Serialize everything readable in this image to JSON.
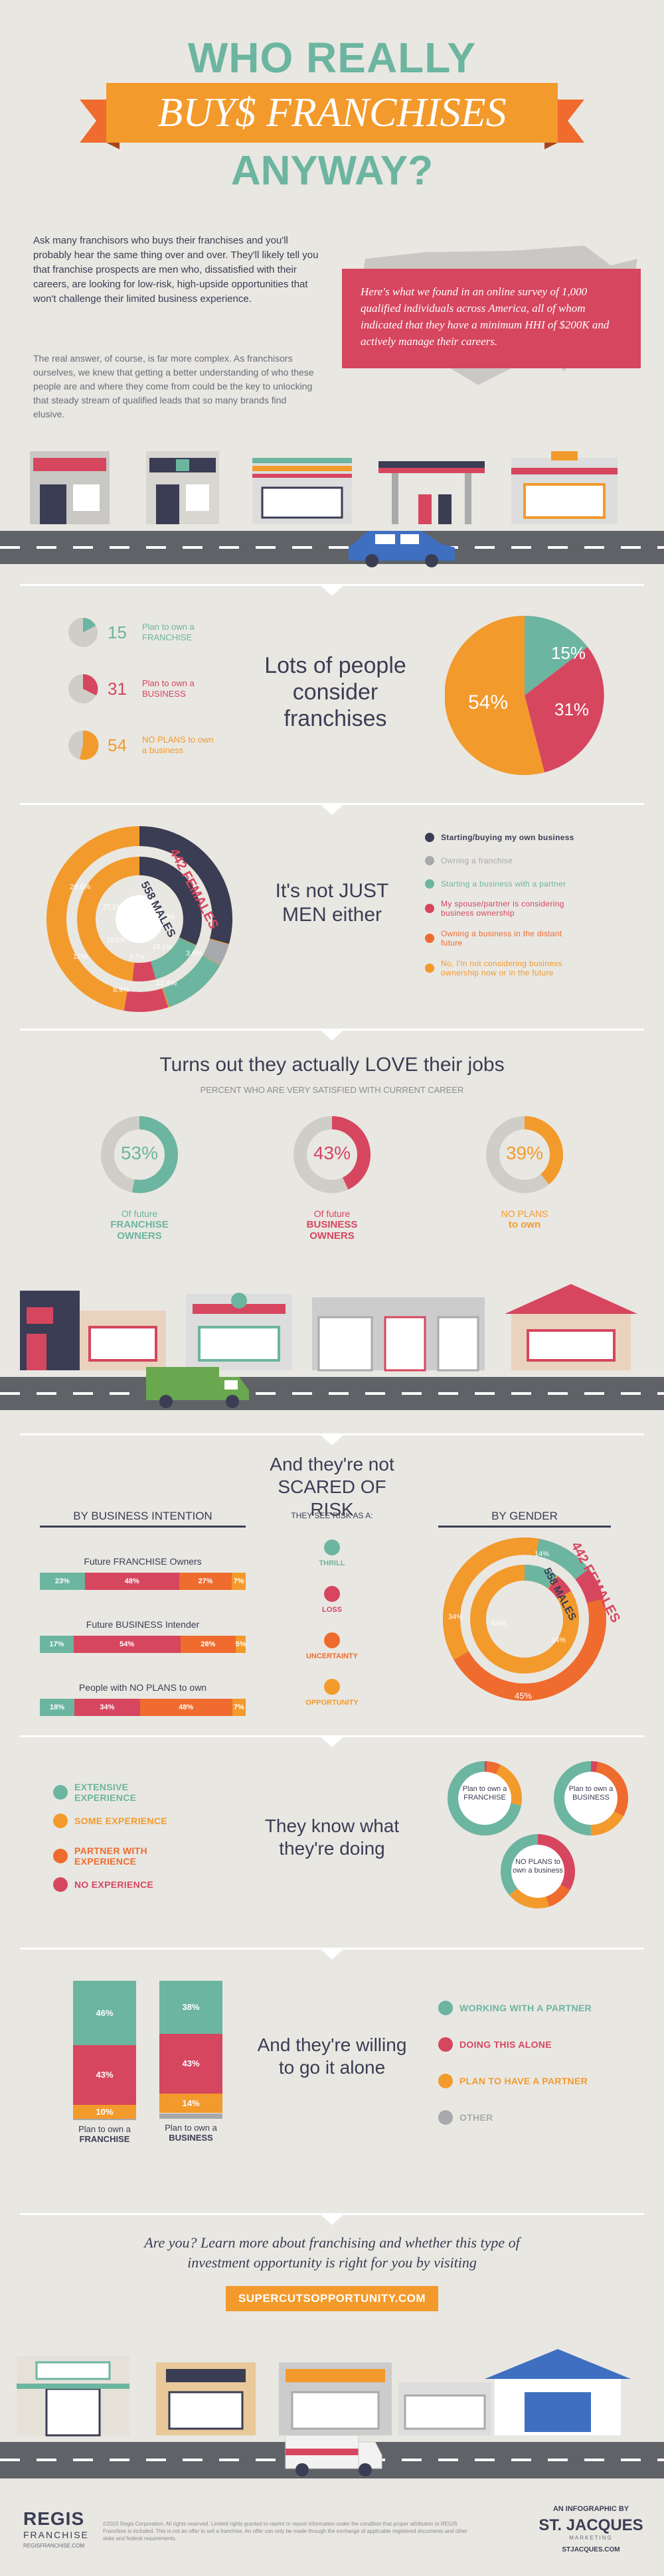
{
  "colors": {
    "teal": "#6cb5a0",
    "red": "#d6465f",
    "orange": "#f39a2c",
    "navy": "#3a3d53",
    "grey": "#a8a9ac",
    "light": "#e9e7e2",
    "road": "#5f6267",
    "dark_orange": "#ef6b2e"
  },
  "title": {
    "line1": "WHO REALLY",
    "line2": "BUY$ FRANCHISES",
    "line3": "ANYWAY?"
  },
  "intro": {
    "p1": "Ask many franchisors who buys their franchises and you'll probably hear the same thing over and over. They'll likely tell you that franchise prospects are men who, dissatisfied with their careers, are looking for low-risk, high-upside opportunities that won't challenge their limited business experience.",
    "p2": "The real answer, of course, is far more complex. As franchisors ourselves, we knew that getting a better understanding of who these people are and where they come from could be the key to unlocking that steady stream of qualified leads that so many brands find elusive.",
    "survey": "Here's what we found in an online survey of 1,000 qualified individuals across America, all of whom indicated that they have a minimum HHI of $200K and actively manage their careers."
  },
  "consider": {
    "heading": "Lots of people consider franchises",
    "items": [
      {
        "pct": "15",
        "label": "Plan to own a FRANCHISE",
        "color": "#6cb5a0"
      },
      {
        "pct": "31",
        "label": "Plan to own a BUSINESS",
        "color": "#d6465f"
      },
      {
        "pct": "54",
        "label": "NO PLANS to own a business",
        "color": "#f39a2c"
      }
    ],
    "pie": {
      "15": "15",
      "31": "31",
      "54": "54"
    }
  },
  "gender": {
    "heading": "It's not JUST MEN either",
    "females": "442 FEMALES",
    "males": "558 MALES",
    "outer_labels": [
      "28.6",
      "12",
      "8.9",
      "12.4",
      "3.6",
      "442 FEMALES"
    ],
    "inner_labels": [
      "27.2",
      "30.8",
      "15.5",
      "5.7",
      "14.1"
    ],
    "legend": [
      {
        "label": "Starting/buying my own business",
        "color": "#3a3d53"
      },
      {
        "label": "Owning a franchise",
        "color": "#a8a9ac"
      },
      {
        "label": "Starting a business with a partner",
        "color": "#6cb5a0"
      },
      {
        "label": "My spouse/partner is considering business ownership",
        "color": "#d6465f"
      },
      {
        "label": "Owning a business in the distant future",
        "color": "#f39a2c"
      },
      {
        "label": "No, I'm not considering business ownership now or in the future",
        "color": "#f39a2c"
      }
    ]
  },
  "love": {
    "heading": "Turns out they actually LOVE their jobs",
    "sub": "PERCENT WHO ARE VERY SATISFIED WITH CURRENT CAREER",
    "items": [
      {
        "pct": "53",
        "l1": "Of future",
        "l2": "FRANCHISE OWNERS",
        "color": "#6cb5a0",
        "v": 0.53
      },
      {
        "pct": "43",
        "l1": "Of future",
        "l2": "BUSINESS OWNERS",
        "color": "#d6465f",
        "v": 0.43
      },
      {
        "pct": "39",
        "l1": "NO PLANS",
        "l2": "to own",
        "color": "#f39a2c",
        "v": 0.39
      }
    ]
  },
  "risk": {
    "heading": "And they're not SCARED OF RISK",
    "by_intention": "BY BUSINESS INTENTION",
    "see_as": "THEY SEE RISK AS A:",
    "by_gender": "BY GENDER",
    "rows": [
      {
        "label": "Future FRANCHISE Owners",
        "vals": [
          "23",
          "48",
          "27",
          "7"
        ]
      },
      {
        "label": "Future BUSINESS Intender",
        "vals": [
          "17",
          "54",
          "28",
          "5"
        ]
      },
      {
        "label": "People with NO PLANS to own",
        "vals": [
          "18",
          "34",
          "48",
          "7"
        ]
      }
    ],
    "types": [
      {
        "label": "THRILL",
        "color": "#6cb5a0"
      },
      {
        "label": "LOSS",
        "color": "#d6465f"
      },
      {
        "label": "UNCERTAINTY",
        "color": "#ef6b2e"
      },
      {
        "label": "OPPORTUNITY",
        "color": "#f39a2c"
      }
    ],
    "gender_labels": {
      "females": "442 FEMALES",
      "males": "558 MALES",
      "o1": "14",
      "o2": "7",
      "o3": "34",
      "i1": "58",
      "i2": "34",
      "outer_big": "45"
    }
  },
  "experience": {
    "heading": "They know what they're doing",
    "legend": [
      {
        "label": "EXTENSIVE EXPERIENCE",
        "color": "#6cb5a0"
      },
      {
        "label": "SOME EXPERIENCE",
        "color": "#f39a2c"
      },
      {
        "label": "PARTNER WITH EXPERIENCE",
        "color": "#ef6b2e"
      },
      {
        "label": "NO EXPERIENCE",
        "color": "#d6465f"
      }
    ],
    "donuts": [
      {
        "label": "Plan to own a FRANCHISE",
        "vals": [
          "1",
          "6",
          "21",
          "72"
        ]
      },
      {
        "label": "Plan to own a BUSINESS",
        "vals": [
          "3",
          "30",
          "17",
          "50"
        ]
      },
      {
        "label": "NO PLANS to own a business",
        "vals": [
          "23",
          "8",
          "13",
          "25"
        ]
      }
    ]
  },
  "alone": {
    "heading": "And they're willing to go it alone",
    "bars": [
      {
        "label1": "Plan to own a",
        "label2": "FRANCHISE",
        "vals": {
          "teal": "46",
          "red": "43",
          "orange": "10",
          "grey": "1"
        }
      },
      {
        "label1": "Plan to own a",
        "label2": "BUSINESS",
        "vals": {
          "teal": "38",
          "red": "43",
          "orange": "14",
          "grey": "4"
        }
      }
    ],
    "legend": [
      {
        "label": "WORKING WITH A PARTNER",
        "color": "#6cb5a0"
      },
      {
        "label": "DOING THIS ALONE",
        "color": "#d6465f"
      },
      {
        "label": "PLAN TO HAVE A PARTNER",
        "color": "#f39a2c"
      },
      {
        "label": "OTHER",
        "color": "#a8a9ac"
      }
    ]
  },
  "cta": {
    "text": "Are you? Learn more about franchising and whether this type of investment opportunity is right for you by visiting",
    "url": "SUPERCUTSOPPORTUNITY.COM"
  },
  "footer": {
    "brand1": "REGIS",
    "brand2": "FRANCHISE",
    "brand_sub": "REGISFRANCHISE.COM",
    "legal": "©2015 Regis Corporation. All rights reserved. Limited rights granted to reprint or repost information under the condition that proper attribution to REGIS Franchise is included. This is not an offer to sell a franchise. An offer can only be made through the exchange of applicable registered documents and other state and federal requirements.",
    "info": "AN INFOGRAPHIC BY",
    "sj": "ST. JACQUES",
    "sj_sub": "MARKETING",
    "sj_url": "STJACQUES.COM"
  }
}
